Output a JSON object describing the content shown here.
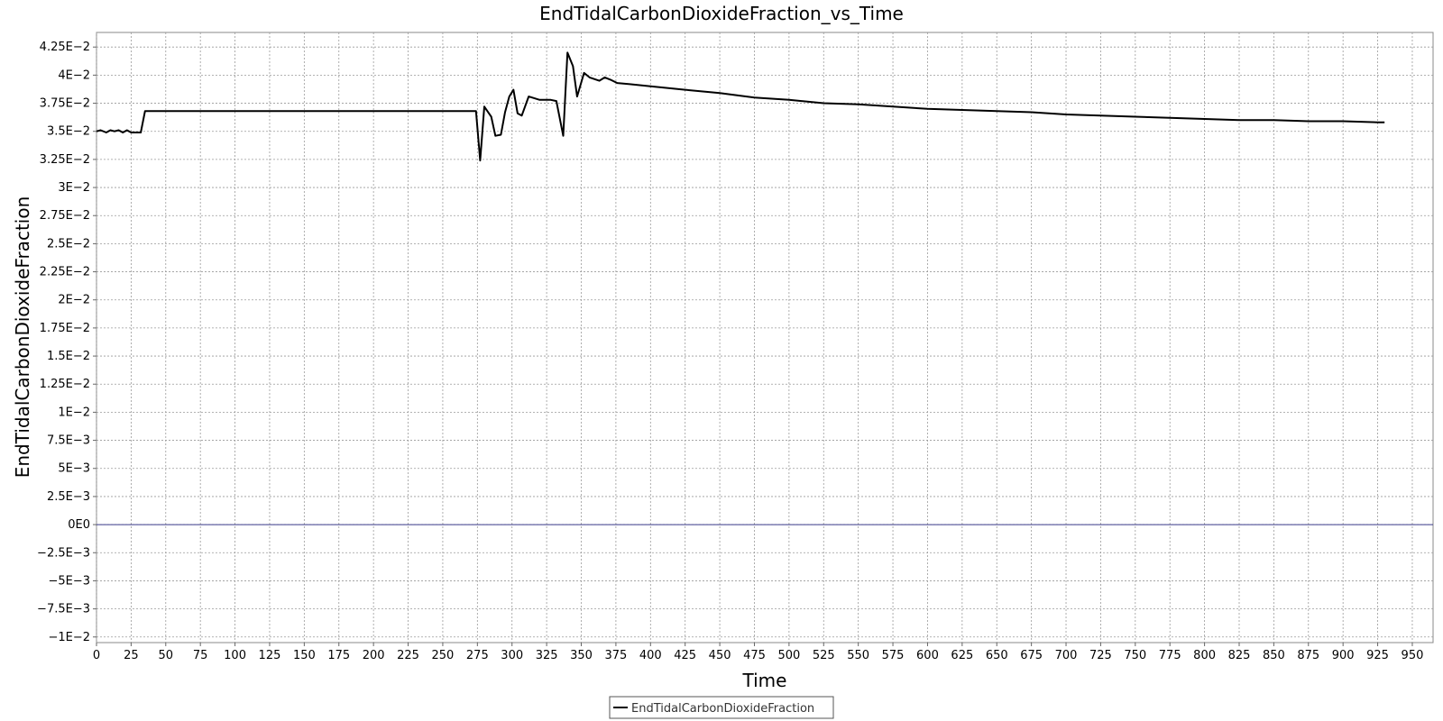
{
  "chart_data": {
    "type": "line",
    "title": "EndTidalCarbonDioxideFraction_vs_Time",
    "xlabel": "Time",
    "ylabel": "EndTidalCarbonDioxideFraction",
    "xlim": [
      0,
      965
    ],
    "ylim": [
      -0.0105,
      0.0438
    ],
    "x_ticks": [
      0,
      25,
      50,
      75,
      100,
      125,
      150,
      175,
      200,
      225,
      250,
      275,
      300,
      325,
      350,
      375,
      400,
      425,
      450,
      475,
      500,
      525,
      550,
      575,
      600,
      625,
      650,
      675,
      700,
      725,
      750,
      775,
      800,
      825,
      850,
      875,
      900,
      925,
      950
    ],
    "x_tick_labels": [
      "0",
      "25",
      "50",
      "75",
      "100",
      "125",
      "150",
      "175",
      "200",
      "225",
      "250",
      "275",
      "300",
      "325",
      "350",
      "375",
      "400",
      "425",
      "450",
      "475",
      "500",
      "525",
      "550",
      "575",
      "600",
      "625",
      "650",
      "675",
      "700",
      "725",
      "750",
      "775",
      "800",
      "825",
      "850",
      "875",
      "900",
      "925",
      "950"
    ],
    "y_ticks": [
      0.0425,
      0.04,
      0.0375,
      0.035,
      0.0325,
      0.03,
      0.0275,
      0.025,
      0.0225,
      0.02,
      0.0175,
      0.015,
      0.0125,
      0.01,
      0.0075,
      0.005,
      0.0025,
      0,
      -0.0025,
      -0.005,
      -0.0075,
      -0.01
    ],
    "y_tick_labels": [
      "4.25E−2",
      "4E−2",
      "3.75E−2",
      "3.5E−2",
      "3.25E−2",
      "3E−2",
      "2.75E−2",
      "2.5E−2",
      "2.25E−2",
      "2E−2",
      "1.75E−2",
      "1.5E−2",
      "1.25E−2",
      "1E−2",
      "7.5E−3",
      "5E−3",
      "2.5E−3",
      "0E0",
      "−2.5E−3",
      "−5E−3",
      "−7.5E−3",
      "−1E−2"
    ],
    "grid": true,
    "legend_position": "bottom-center",
    "series": [
      {
        "name": "EndTidalCarbonDioxideFraction",
        "color": "#000000",
        "x": [
          0,
          3,
          7,
          10,
          13,
          16,
          19,
          22,
          25,
          28,
          32,
          35,
          270,
          274,
          277,
          280,
          285,
          288,
          292,
          295,
          298,
          301,
          304,
          307,
          312,
          320,
          328,
          332,
          337,
          340,
          344,
          347,
          352,
          356,
          363,
          367,
          371,
          376,
          385,
          400,
          425,
          450,
          475,
          500,
          525,
          550,
          575,
          600,
          625,
          650,
          675,
          700,
          725,
          750,
          775,
          800,
          825,
          850,
          875,
          900,
          925,
          930
        ],
        "y": [
          0.035,
          0.0351,
          0.0349,
          0.0351,
          0.035,
          0.0351,
          0.0349,
          0.0351,
          0.0349,
          0.0349,
          0.0349,
          0.0368,
          0.0368,
          0.0368,
          0.0324,
          0.0372,
          0.0363,
          0.0346,
          0.0347,
          0.0367,
          0.0381,
          0.0387,
          0.0366,
          0.0364,
          0.0381,
          0.0378,
          0.0378,
          0.0377,
          0.0346,
          0.042,
          0.0408,
          0.0381,
          0.0402,
          0.0398,
          0.0395,
          0.0398,
          0.0396,
          0.0393,
          0.0392,
          0.039,
          0.0387,
          0.0384,
          0.038,
          0.0378,
          0.0375,
          0.0374,
          0.0372,
          0.037,
          0.0369,
          0.0368,
          0.0367,
          0.0365,
          0.0364,
          0.0363,
          0.0362,
          0.0361,
          0.036,
          0.036,
          0.0359,
          0.0359,
          0.0358,
          0.0358
        ]
      }
    ]
  }
}
